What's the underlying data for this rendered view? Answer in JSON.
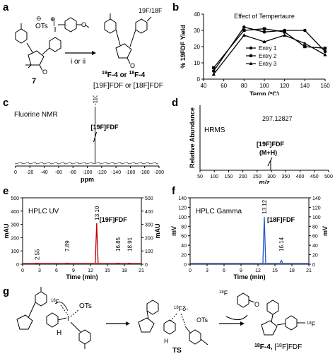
{
  "panel_labels": {
    "a": "a",
    "b": "b",
    "c": "c",
    "d": "d",
    "e": "e",
    "f": "f",
    "g": "g"
  },
  "panel_a": {
    "compound_label": "7",
    "reagent": "i  or ii",
    "leaving_group": "OTs",
    "product_label_line1_a": "19",
    "product_label_line1_b": "F-4 or ",
    "product_label_line1_c": "18",
    "product_label_line1_d": "F-4",
    "product_label_line2": "[19F]FDF or [18F]FDF",
    "fluorine_label": "19F/18F"
  },
  "chart_data": [
    {
      "id": "b",
      "type": "line",
      "title": "Effect of Tempertaure",
      "xlabel": "Temp (ºC)",
      "ylabel": "% 19FDF Yield",
      "xlim": [
        40,
        160
      ],
      "ylim": [
        0,
        40
      ],
      "xticks": [
        40,
        60,
        80,
        100,
        120,
        140,
        160
      ],
      "yticks": [
        0,
        10,
        20,
        30,
        40
      ],
      "series": [
        {
          "name": "Entry 1",
          "marker": "circle",
          "x": [
            50,
            80,
            100,
            120,
            140,
            160
          ],
          "y": [
            5,
            32,
            29,
            30,
            30,
            17
          ]
        },
        {
          "name": "Entry 2",
          "marker": "square",
          "x": [
            50,
            80,
            100,
            120,
            140,
            160
          ],
          "y": [
            7,
            30,
            31,
            29,
            20,
            19
          ]
        },
        {
          "name": "Entry 3",
          "marker": "triangle",
          "x": [
            50,
            80,
            100,
            120,
            140,
            160
          ],
          "y": [
            3,
            27,
            23,
            27,
            22,
            15
          ]
        }
      ]
    },
    {
      "id": "c",
      "type": "line",
      "title": "Fluorine NMR",
      "xlabel": "ppm",
      "xticks": [
        "0",
        "-20",
        "-40",
        "-60",
        "-80",
        "-100",
        "-120",
        "-140",
        "-160",
        "-180",
        "-200"
      ],
      "peak_label": "-110.85",
      "annotation": "[19F]FDF",
      "peaks": [
        {
          "x": -110.85,
          "y": 1.0
        }
      ]
    },
    {
      "id": "d",
      "type": "line",
      "title": "HRMS",
      "xlabel": "m/z",
      "ylabel": "Relative Abundance",
      "xticks": [
        "50",
        "100",
        "150",
        "200",
        "250",
        "300",
        "350",
        "400",
        "450",
        "500"
      ],
      "peak_label": "297.12827",
      "annotation_line1": "[19F]FDF",
      "annotation_line2": "(M+H)",
      "peaks": [
        {
          "x": 297.13,
          "y": 0.15
        }
      ]
    },
    {
      "id": "e",
      "type": "line",
      "title": "HPLC UV",
      "xlabel": "Time (min)",
      "ylabel_left": "mAU",
      "ylabel_right": "mAU",
      "xticks": [
        "0",
        "3",
        "6",
        "9",
        "12",
        "15",
        "18",
        "21"
      ],
      "yticks": [
        "0",
        "100",
        "200",
        "300",
        "400",
        "500"
      ],
      "annotation": "[19F]FDF",
      "peak_labels": [
        "2.55",
        "7.89",
        "13.10",
        "16.85",
        "18.91"
      ],
      "peaks": [
        {
          "x": 2.55,
          "y": 3
        },
        {
          "x": 7.89,
          "y": 3
        },
        {
          "x": 13.1,
          "y": 310
        },
        {
          "x": 16.85,
          "y": 4
        },
        {
          "x": 18.91,
          "y": 4
        }
      ]
    },
    {
      "id": "f",
      "type": "line",
      "title": "HPLC Gamma",
      "xlabel": "Time (min)",
      "ylabel_left": "mV",
      "ylabel_right": "mV",
      "xticks": [
        "0",
        "3",
        "6",
        "9",
        "12",
        "15",
        "18",
        "21"
      ],
      "yticks": [
        "0",
        "20",
        "40",
        "60",
        "80",
        "100",
        "120",
        "140"
      ],
      "annotation": "[18F]FDF",
      "peak_labels": [
        "13.12",
        "16.14"
      ],
      "peaks": [
        {
          "x": 13.12,
          "y": 100
        },
        {
          "x": 16.14,
          "y": 8
        }
      ]
    }
  ],
  "panel_g": {
    "fluoride_left": "18F",
    "ots_left": "OTs",
    "iodine": "I",
    "h_left": "H",
    "ts_fluoride": "18F",
    "ts_ots": "OTs",
    "ts_h": "H",
    "ts_label": "TS",
    "byproduct_f": "18F",
    "product_f": "18F",
    "product_label": "18F-4, [18F]FDF"
  },
  "colors": {
    "uv_trace": "#c00000",
    "gamma_trace": "#2255cc",
    "axis": "#000000"
  }
}
